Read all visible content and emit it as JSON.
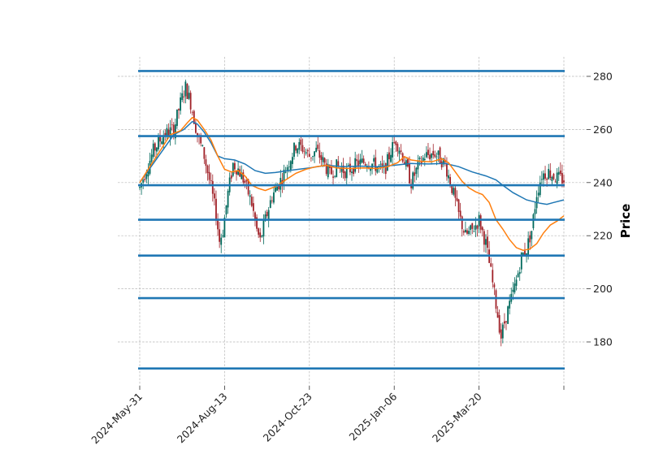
{
  "chart_data": {
    "type": "candlestick",
    "title": "",
    "ylabel": "Price",
    "xlabel": "",
    "ylim": [
      165,
      287
    ],
    "y_ticks": [
      180,
      200,
      220,
      240,
      260,
      280
    ],
    "x_ticks": [
      {
        "index": 0,
        "label": "2024-May-31"
      },
      {
        "index": 50,
        "label": "2024-Aug-13"
      },
      {
        "index": 100,
        "label": "2024-Oct-23"
      },
      {
        "index": 150,
        "label": "2025-Jan-06"
      },
      {
        "index": 200,
        "label": "2025-Mar-20"
      },
      {
        "index": 250,
        "label": ""
      }
    ],
    "x_count": 251,
    "grid": true,
    "up_color": "#00695c",
    "down_color": "#a02128",
    "support_resistance_levels": [
      282,
      257.5,
      239,
      226,
      212.5,
      196.5,
      170
    ],
    "level_color": "#1f77b4",
    "price_path": [
      [
        0,
        238
      ],
      [
        4,
        245
      ],
      [
        8,
        252
      ],
      [
        14,
        258
      ],
      [
        20,
        260
      ],
      [
        24,
        270
      ],
      [
        27,
        276
      ],
      [
        30,
        270
      ],
      [
        34,
        258
      ],
      [
        38,
        250
      ],
      [
        42,
        238
      ],
      [
        45,
        228
      ],
      [
        47,
        218
      ],
      [
        49,
        222
      ],
      [
        52,
        236
      ],
      [
        55,
        247
      ],
      [
        58,
        245
      ],
      [
        62,
        240
      ],
      [
        66,
        232
      ],
      [
        69,
        222
      ],
      [
        71,
        218
      ],
      [
        74,
        226
      ],
      [
        78,
        235
      ],
      [
        84,
        242
      ],
      [
        88,
        248
      ],
      [
        92,
        254
      ],
      [
        96,
        253
      ],
      [
        100,
        250
      ],
      [
        104,
        252
      ],
      [
        108,
        248
      ],
      [
        112,
        243
      ],
      [
        116,
        246
      ],
      [
        122,
        244
      ],
      [
        128,
        247
      ],
      [
        134,
        248
      ],
      [
        140,
        246
      ],
      [
        144,
        244
      ],
      [
        148,
        252
      ],
      [
        151,
        256
      ],
      [
        155,
        250
      ],
      [
        160,
        240
      ],
      [
        164,
        246
      ],
      [
        168,
        250
      ],
      [
        174,
        251
      ],
      [
        180,
        247
      ],
      [
        184,
        238
      ],
      [
        188,
        228
      ],
      [
        192,
        220
      ],
      [
        196,
        222
      ],
      [
        200,
        226
      ],
      [
        204,
        217
      ],
      [
        207,
        206
      ],
      [
        210,
        194
      ],
      [
        213,
        182
      ],
      [
        216,
        190
      ],
      [
        219,
        196
      ],
      [
        222,
        203
      ],
      [
        225,
        212
      ],
      [
        228,
        215
      ],
      [
        231,
        222
      ],
      [
        234,
        236
      ],
      [
        237,
        243
      ],
      [
        241,
        244
      ],
      [
        245,
        242
      ],
      [
        250,
        241
      ]
    ],
    "series": [
      {
        "name": "",
        "color": "#1f77b4",
        "points": [
          [
            0,
            240
          ],
          [
            10,
            249
          ],
          [
            20,
            258
          ],
          [
            26,
            260
          ],
          [
            31,
            263
          ],
          [
            34,
            262
          ],
          [
            38,
            259
          ],
          [
            42,
            255
          ],
          [
            46,
            250
          ],
          [
            50,
            249
          ],
          [
            56,
            248.5
          ],
          [
            62,
            247
          ],
          [
            68,
            244.5
          ],
          [
            74,
            243.5
          ],
          [
            80,
            243.8
          ],
          [
            90,
            244.7
          ],
          [
            100,
            245.5
          ],
          [
            110,
            246.5
          ],
          [
            120,
            246
          ],
          [
            130,
            246.2
          ],
          [
            140,
            246
          ],
          [
            150,
            246.5
          ],
          [
            160,
            247.2
          ],
          [
            170,
            247
          ],
          [
            180,
            247.2
          ],
          [
            188,
            246
          ],
          [
            196,
            244
          ],
          [
            204,
            242.5
          ],
          [
            210,
            241
          ],
          [
            214,
            239
          ],
          [
            220,
            236.2
          ],
          [
            228,
            233.5
          ],
          [
            236,
            232.2
          ],
          [
            240,
            231.8
          ],
          [
            244,
            232.5
          ],
          [
            250,
            233.5
          ]
        ]
      },
      {
        "name": "",
        "color": "#ff7f0e",
        "points": [
          [
            0,
            240
          ],
          [
            6,
            246
          ],
          [
            12,
            252
          ],
          [
            18,
            258
          ],
          [
            24,
            259.5
          ],
          [
            28,
            262.5
          ],
          [
            31,
            264.5
          ],
          [
            34,
            263.5
          ],
          [
            38,
            260
          ],
          [
            42,
            256
          ],
          [
            46,
            250
          ],
          [
            50,
            245
          ],
          [
            54,
            244
          ],
          [
            58,
            244.5
          ],
          [
            62,
            242.5
          ],
          [
            66,
            239
          ],
          [
            70,
            237.8
          ],
          [
            74,
            237
          ],
          [
            80,
            238.5
          ],
          [
            86,
            241
          ],
          [
            92,
            243.5
          ],
          [
            98,
            245
          ],
          [
            104,
            246
          ],
          [
            110,
            246.5
          ],
          [
            116,
            245.5
          ],
          [
            124,
            245.3
          ],
          [
            132,
            245.5
          ],
          [
            140,
            245.3
          ],
          [
            146,
            246
          ],
          [
            152,
            247.5
          ],
          [
            156,
            249.8
          ],
          [
            160,
            248.5
          ],
          [
            166,
            248
          ],
          [
            172,
            247.8
          ],
          [
            178,
            249
          ],
          [
            182,
            247.5
          ],
          [
            186,
            244
          ],
          [
            190,
            240.5
          ],
          [
            194,
            238
          ],
          [
            198,
            236.5
          ],
          [
            202,
            235.5
          ],
          [
            206,
            232.5
          ],
          [
            210,
            226
          ],
          [
            214,
            222.5
          ],
          [
            218,
            218.5
          ],
          [
            222,
            215.5
          ],
          [
            226,
            214.5
          ],
          [
            230,
            215
          ],
          [
            234,
            217
          ],
          [
            238,
            221
          ],
          [
            242,
            224
          ],
          [
            246,
            225.5
          ],
          [
            250,
            227.5
          ]
        ]
      }
    ]
  }
}
